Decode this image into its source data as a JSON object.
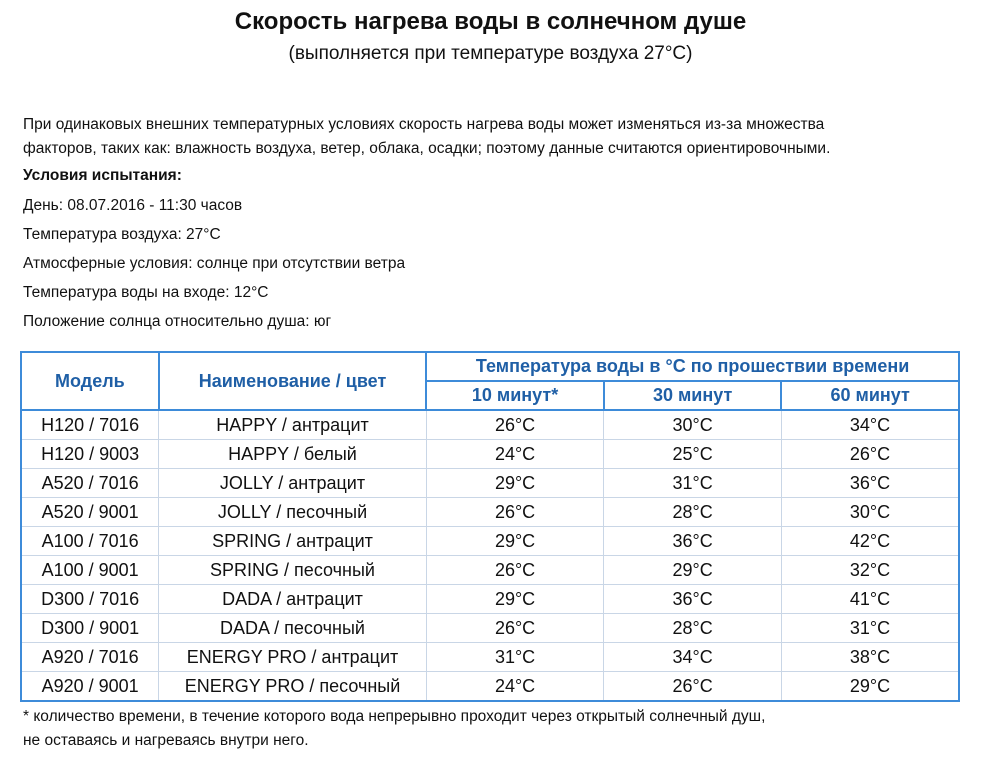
{
  "title": "Скорость нагрева воды в солнечном душе",
  "subtitle": "(выполняется при температуре воздуха 27°C)",
  "intro": [
    "При одинаковых внешних температурных условиях скорость нагрева воды может изменяться из-за множества",
    "факторов, таких как: влажность воздуха, ветер, облака, осадки; поэтому данные считаются ориентировочными."
  ],
  "conditions_heading": "Условия испытания:",
  "conditions": [
    "День: 08.07.2016 - 11:30 часов",
    "Температура воздуха: 27°C",
    "Атмосферные условия: солнце при отсутствии ветра",
    "Температура воды на входе: 12°C",
    "Положение солнца относительно душа: юг"
  ],
  "table": {
    "headers": {
      "model": "Модель",
      "name": "Наименование / цвет",
      "group": "Температура воды в °C  по прошествии времени",
      "t10": "10 минут*",
      "t30": "30 минут",
      "t60": "60 минут"
    },
    "rows": [
      [
        "H120 / 7016",
        "HAPPY / антрацит",
        "26°C",
        "30°C",
        "34°C"
      ],
      [
        "H120 / 9003",
        "HAPPY / белый",
        "24°C",
        "25°C",
        "26°C"
      ],
      [
        "A520 / 7016",
        "JOLLY / антрацит",
        "29°C",
        "31°C",
        "36°C"
      ],
      [
        "A520 / 9001",
        "JOLLY / песочный",
        "26°C",
        "28°C",
        "30°C"
      ],
      [
        "A100 / 7016",
        "SPRING / антрацит",
        "29°C",
        "36°C",
        "42°C"
      ],
      [
        "A100 / 9001",
        "SPRING / песочный",
        "26°C",
        "29°C",
        "32°C"
      ],
      [
        "D300 / 7016",
        "DADA / антрацит",
        "29°C",
        "36°C",
        "41°C"
      ],
      [
        "D300 / 9001",
        "DADA / песочный",
        "26°C",
        "28°C",
        "31°C"
      ],
      [
        "A920 / 7016",
        "ENERGY PRO / антрацит",
        "31°C",
        "34°C",
        "38°C"
      ],
      [
        "A920 / 9001",
        "ENERGY PRO / песочный",
        "24°C",
        "26°C",
        "29°C"
      ]
    ]
  },
  "footnote": [
    "* количество времени, в течение которого вода непрерывно проходит через открытый солнечный душ,",
    "не оставаясь и нагреваясь внутри него."
  ],
  "colors": {
    "header_text": "#1f5fa6",
    "border": "#3d8bd9"
  }
}
